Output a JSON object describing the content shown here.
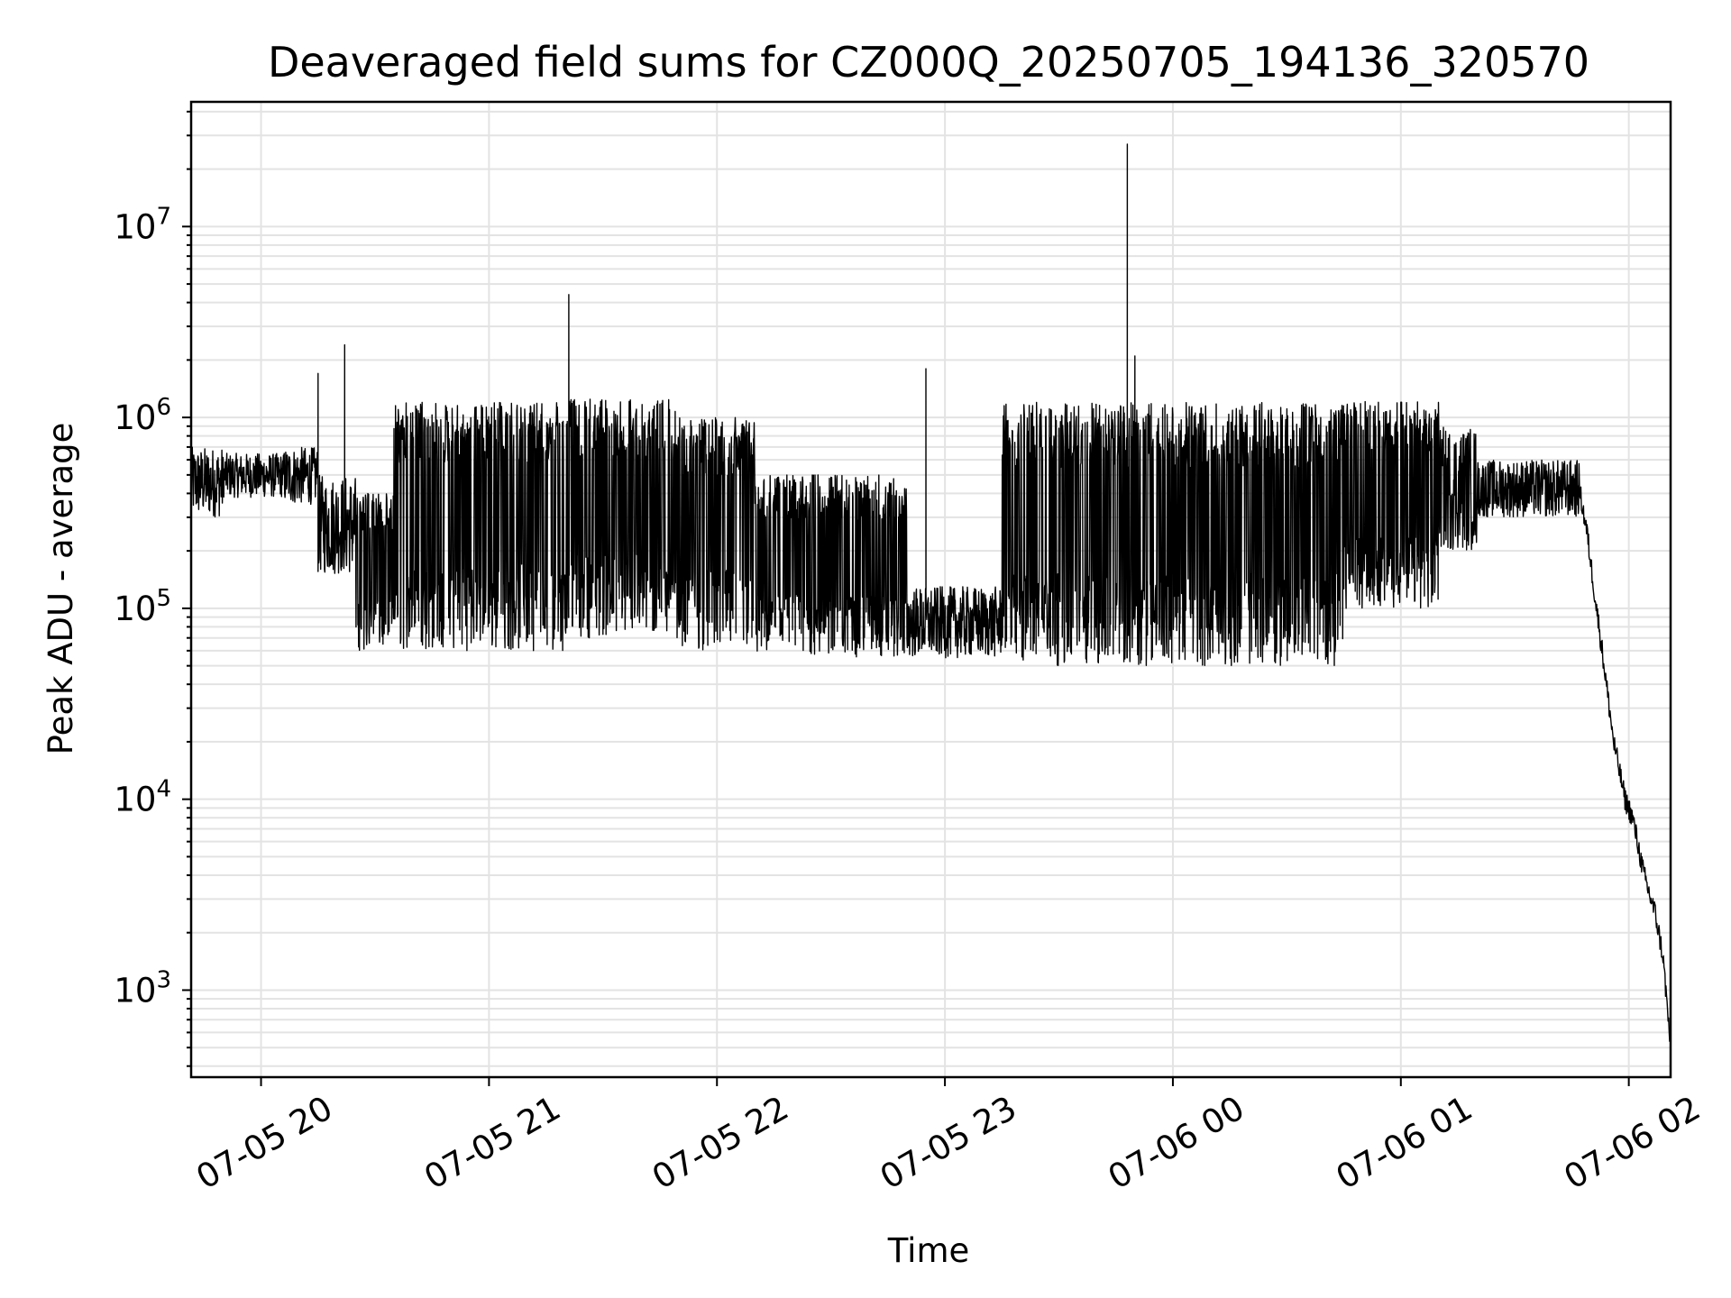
{
  "chart_data": {
    "type": "line",
    "title": "Deaveraged field sums for CZ000Q_20250705_194136_320570",
    "xlabel": "Time",
    "ylabel": "Peak ADU - average",
    "yscale": "log",
    "xlim": [
      "2025-07-05T19:41:36",
      "2025-07-06T02:11:00"
    ],
    "ylim": [
      350,
      45000000
    ],
    "x_ticks": [
      {
        "label": "07-05 20",
        "time": "2025-07-05T20:00:00"
      },
      {
        "label": "07-05 21",
        "time": "2025-07-05T21:00:00"
      },
      {
        "label": "07-05 22",
        "time": "2025-07-05T22:00:00"
      },
      {
        "label": "07-05 23",
        "time": "2025-07-05T23:00:00"
      },
      {
        "label": "07-06 00",
        "time": "2025-07-06T00:00:00"
      },
      {
        "label": "07-06 01",
        "time": "2025-07-06T01:00:00"
      },
      {
        "label": "07-06 02",
        "time": "2025-07-06T02:00:00"
      }
    ],
    "y_ticks": [
      {
        "base": "10",
        "exp": "3",
        "value": 1000
      },
      {
        "base": "10",
        "exp": "4",
        "value": 10000
      },
      {
        "base": "10",
        "exp": "5",
        "value": 100000
      },
      {
        "base": "10",
        "exp": "6",
        "value": 1000000
      },
      {
        "base": "10",
        "exp": "7",
        "value": 10000000
      }
    ],
    "grid": true,
    "series_color": "#000000",
    "segments": [
      {
        "start": "2025-07-05T19:41:36",
        "end": "2025-07-05T19:50:00",
        "low": 300000,
        "high": 700000
      },
      {
        "start": "2025-07-05T19:50:00",
        "end": "2025-07-05T20:06:00",
        "low": 380000,
        "high": 650000
      },
      {
        "start": "2025-07-05T20:06:00",
        "end": "2025-07-05T20:15:00",
        "low": 350000,
        "high": 700000
      },
      {
        "start": "2025-07-05T20:15:00",
        "end": "2025-07-05T20:25:00",
        "low": 150000,
        "high": 500000
      },
      {
        "start": "2025-07-05T20:25:00",
        "end": "2025-07-05T20:35:00",
        "low": 60000,
        "high": 400000
      },
      {
        "start": "2025-07-05T20:35:00",
        "end": "2025-07-05T21:20:00",
        "low": 60000,
        "high": 1200000
      },
      {
        "start": "2025-07-05T21:20:00",
        "end": "2025-07-05T21:50:00",
        "low": 70000,
        "high": 1250000
      },
      {
        "start": "2025-07-05T21:50:00",
        "end": "2025-07-05T22:10:00",
        "low": 60000,
        "high": 1000000
      },
      {
        "start": "2025-07-05T22:10:00",
        "end": "2025-07-05T22:50:00",
        "low": 55000,
        "high": 500000
      },
      {
        "start": "2025-07-05T22:50:00",
        "end": "2025-07-05T23:15:00",
        "low": 55000,
        "high": 130000
      },
      {
        "start": "2025-07-05T23:15:00",
        "end": "2025-07-05T23:35:00",
        "low": 50000,
        "high": 1200000
      },
      {
        "start": "2025-07-05T23:35:00",
        "end": "2025-07-06T00:45:00",
        "low": 50000,
        "high": 1200000
      },
      {
        "start": "2025-07-06T00:45:00",
        "end": "2025-07-06T01:10:00",
        "low": 100000,
        "high": 1250000
      },
      {
        "start": "2025-07-06T01:10:00",
        "end": "2025-07-06T01:20:00",
        "low": 200000,
        "high": 900000
      },
      {
        "start": "2025-07-06T01:20:00",
        "end": "2025-07-06T01:47:00",
        "low": 300000,
        "high": 600000
      }
    ],
    "decay": [
      {
        "time": "2025-07-06T01:47:00",
        "value": 420000
      },
      {
        "time": "2025-07-06T01:49:00",
        "value": 250000
      },
      {
        "time": "2025-07-06T01:51:00",
        "value": 120000
      },
      {
        "time": "2025-07-06T01:53:00",
        "value": 60000
      },
      {
        "time": "2025-07-06T01:56:00",
        "value": 20000
      },
      {
        "time": "2025-07-06T01:59:00",
        "value": 10000
      },
      {
        "time": "2025-07-06T02:01:00",
        "value": 8000
      },
      {
        "time": "2025-07-06T02:04:00",
        "value": 4000
      },
      {
        "time": "2025-07-06T02:07:00",
        "value": 2500
      },
      {
        "time": "2025-07-06T02:09:00",
        "value": 1500
      },
      {
        "time": "2025-07-06T02:11:00",
        "value": 500
      }
    ],
    "spikes": [
      {
        "time": "2025-07-05T20:15:00",
        "value": 1700000
      },
      {
        "time": "2025-07-05T20:22:00",
        "value": 2400000
      },
      {
        "time": "2025-07-05T21:21:00",
        "value": 4400000
      },
      {
        "time": "2025-07-05T22:55:00",
        "value": 1800000
      },
      {
        "time": "2025-07-05T23:48:00",
        "value": 27000000
      },
      {
        "time": "2025-07-05T23:50:00",
        "value": 2100000
      }
    ]
  }
}
